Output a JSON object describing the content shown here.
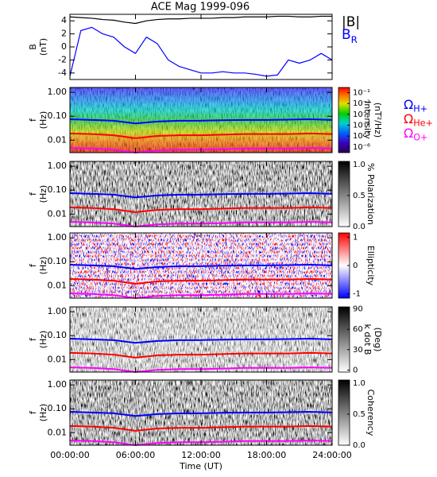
{
  "chart_data": [
    {
      "type": "line",
      "title": "ACE Mag 1999-096",
      "ylabel": [
        "B",
        "(nT)"
      ],
      "xlim": [
        0,
        24
      ],
      "ylim": [
        -5,
        5
      ],
      "yticks": [
        -4,
        -2,
        0,
        2,
        4
      ],
      "x": [
        0,
        1,
        2,
        3,
        4,
        5,
        6,
        7,
        8,
        9,
        10,
        11,
        12,
        13,
        14,
        15,
        16,
        17,
        18,
        19,
        20,
        21,
        22,
        23,
        24
      ],
      "series": [
        {
          "name": "|B|",
          "color": "#000000",
          "values": [
            4.6,
            4.5,
            4.4,
            4.2,
            4.1,
            3.8,
            3.6,
            4,
            4.2,
            4.3,
            4.3,
            4.4,
            4.4,
            4.4,
            4.5,
            4.5,
            4.6,
            4.6,
            4.6,
            4.7,
            4.7,
            4.6,
            4.6,
            4.7,
            4.7
          ]
        },
        {
          "name": "BR",
          "color": "#0000ff",
          "values": [
            -4.5,
            2.5,
            3,
            2,
            1.5,
            0,
            -1,
            1.5,
            0.5,
            -2,
            -3,
            -3.5,
            -4,
            -4,
            -3.8,
            -4,
            -4,
            -4.2,
            -4.5,
            -4.3,
            -2,
            -2.5,
            -2,
            -1,
            -2
          ]
        }
      ]
    },
    {
      "type": "spectrogram",
      "ylabel": [
        "f",
        "(Hz)"
      ],
      "xlim": [
        0,
        24
      ],
      "ylim": [
        0.003,
        1.6
      ],
      "log_y": true,
      "yticks": [
        0.01,
        {
          "value": 0.1,
          "label": "0.10"
        },
        {
          "value": 1,
          "label": "1.00"
        }
      ],
      "colormap": "rainbow",
      "colorbar": {
        "label": [
          "Intensity",
          "(nT²/Hz)"
        ],
        "log": true,
        "lim": [
          3e-07,
          0.3
        ],
        "ticks": [
          {
            "value": 0.1,
            "label": "10⁻¹"
          },
          {
            "value": 0.01,
            "label": "10⁻²"
          },
          {
            "value": 0.001,
            "label": "10⁻³"
          },
          {
            "value": 0.0001,
            "label": "10⁻⁴"
          },
          {
            "value": 1e-05,
            "label": "10⁻⁵"
          },
          {
            "value": 1e-06,
            "label": "10⁻⁶"
          }
        ]
      },
      "x": [
        0,
        2,
        4,
        6,
        8,
        10,
        12,
        14,
        16,
        18,
        20,
        22,
        24
      ],
      "series": [
        {
          "name": "ΩH+",
          "color": "#0000ff",
          "values": [
            0.075,
            0.07,
            0.065,
            0.05,
            0.06,
            0.065,
            0.065,
            0.068,
            0.07,
            0.07,
            0.072,
            0.075,
            0.07
          ]
        },
        {
          "name": "ΩHe+",
          "color": "#ff0000",
          "values": [
            0.019,
            0.018,
            0.016,
            0.012,
            0.015,
            0.016,
            0.016,
            0.017,
            0.018,
            0.018,
            0.018,
            0.019,
            0.018
          ]
        },
        {
          "name": "ΩO+",
          "color": "#ff00ff",
          "values": [
            0.0047,
            0.0045,
            0.004,
            0.003,
            0.0037,
            0.004,
            0.004,
            0.0042,
            0.0045,
            0.0045,
            0.0045,
            0.0047,
            0.0045
          ]
        }
      ]
    },
    {
      "type": "spectrogram",
      "ylabel": [
        "f",
        "(Hz)"
      ],
      "xlim": [
        0,
        24
      ],
      "ylim": [
        0.003,
        1.6
      ],
      "log_y": true,
      "yticks": [
        0.01,
        {
          "value": 0.1,
          "label": "0.10"
        },
        {
          "value": 1,
          "label": "1.00"
        }
      ],
      "colormap": "gray",
      "colorbar": {
        "label": [
          "% Polarization"
        ],
        "lim": [
          0,
          1.05
        ],
        "ticks": [
          {
            "value": 0,
            "label": "0.0"
          },
          {
            "value": 0.5,
            "label": "0.5"
          },
          {
            "value": 1,
            "label": "1.0"
          }
        ]
      },
      "x": [
        0,
        2,
        4,
        6,
        8,
        10,
        12,
        14,
        16,
        18,
        20,
        22,
        24
      ],
      "series": [
        {
          "color": "#0000ff",
          "values": [
            0.075,
            0.07,
            0.065,
            0.05,
            0.06,
            0.065,
            0.065,
            0.068,
            0.07,
            0.07,
            0.072,
            0.075,
            0.07
          ]
        },
        {
          "color": "#ff0000",
          "values": [
            0.019,
            0.018,
            0.016,
            0.012,
            0.015,
            0.016,
            0.016,
            0.017,
            0.018,
            0.018,
            0.018,
            0.019,
            0.018
          ]
        },
        {
          "color": "#ff00ff",
          "values": [
            0.0047,
            0.0045,
            0.004,
            0.003,
            0.0037,
            0.004,
            0.004,
            0.0042,
            0.0045,
            0.0045,
            0.0045,
            0.0047,
            0.0045
          ]
        }
      ]
    },
    {
      "type": "spectrogram",
      "ylabel": [
        "f",
        "(Hz)"
      ],
      "xlim": [
        0,
        24
      ],
      "ylim": [
        0.003,
        1.6
      ],
      "log_y": true,
      "yticks": [
        0.01,
        {
          "value": 0.1,
          "label": "0.10"
        },
        {
          "value": 1,
          "label": "1.00"
        }
      ],
      "colormap": "bwr",
      "colorbar": {
        "label": [
          "Ellipticity"
        ],
        "lim": [
          -1.15,
          1.15
        ],
        "ticks": [
          -1,
          0,
          1
        ]
      },
      "x": [
        0,
        2,
        4,
        6,
        8,
        10,
        12,
        14,
        16,
        18,
        20,
        22,
        24
      ],
      "series": [
        {
          "color": "#0000ff",
          "values": [
            0.075,
            0.07,
            0.065,
            0.05,
            0.06,
            0.065,
            0.065,
            0.068,
            0.07,
            0.07,
            0.072,
            0.075,
            0.07
          ]
        },
        {
          "color": "#ff0000",
          "values": [
            0.019,
            0.018,
            0.016,
            0.012,
            0.015,
            0.016,
            0.016,
            0.017,
            0.018,
            0.018,
            0.018,
            0.019,
            0.018
          ]
        },
        {
          "color": "#ff00ff",
          "values": [
            0.0047,
            0.0045,
            0.004,
            0.003,
            0.0037,
            0.004,
            0.004,
            0.0042,
            0.0045,
            0.0045,
            0.0045,
            0.0047,
            0.0045
          ]
        }
      ]
    },
    {
      "type": "spectrogram",
      "ylabel": [
        "f",
        "(Hz)"
      ],
      "xlim": [
        0,
        24
      ],
      "ylim": [
        0.003,
        1.6
      ],
      "log_y": true,
      "yticks": [
        0.01,
        {
          "value": 0.1,
          "label": "0.10"
        },
        {
          "value": 1,
          "label": "1.00"
        }
      ],
      "colormap": "gray-light",
      "colorbar": {
        "label": [
          "k dot B",
          "(Deg)"
        ],
        "lim": [
          -3,
          93
        ],
        "ticks": [
          0,
          30,
          60,
          90
        ]
      },
      "x": [
        0,
        2,
        4,
        6,
        8,
        10,
        12,
        14,
        16,
        18,
        20,
        22,
        24
      ],
      "series": [
        {
          "color": "#0000ff",
          "values": [
            0.075,
            0.07,
            0.065,
            0.05,
            0.06,
            0.065,
            0.065,
            0.068,
            0.07,
            0.07,
            0.072,
            0.075,
            0.07
          ]
        },
        {
          "color": "#ff0000",
          "values": [
            0.019,
            0.018,
            0.016,
            0.012,
            0.015,
            0.016,
            0.016,
            0.017,
            0.018,
            0.018,
            0.018,
            0.019,
            0.018
          ]
        },
        {
          "color": "#ff00ff",
          "values": [
            0.0047,
            0.0045,
            0.004,
            0.003,
            0.0037,
            0.004,
            0.004,
            0.0042,
            0.0045,
            0.0045,
            0.0045,
            0.0047,
            0.0045
          ]
        }
      ]
    },
    {
      "type": "spectrogram",
      "ylabel": [
        "f",
        "(Hz)"
      ],
      "xlim": [
        0,
        24
      ],
      "ylim": [
        0.003,
        1.6
      ],
      "log_y": true,
      "yticks": [
        0.01,
        {
          "value": 0.1,
          "label": "0.10"
        },
        {
          "value": 1,
          "label": "1.00"
        }
      ],
      "colormap": "gray",
      "colorbar": {
        "label": [
          "Coherency"
        ],
        "lim": [
          0,
          1.05
        ],
        "ticks": [
          {
            "value": 0,
            "label": "0.0"
          },
          {
            "value": 0.5,
            "label": "0.5"
          },
          {
            "value": 1,
            "label": "1.0"
          }
        ]
      },
      "x": [
        0,
        2,
        4,
        6,
        8,
        10,
        12,
        14,
        16,
        18,
        20,
        22,
        24
      ],
      "series": [
        {
          "color": "#0000ff",
          "values": [
            0.075,
            0.07,
            0.065,
            0.05,
            0.06,
            0.065,
            0.065,
            0.068,
            0.07,
            0.07,
            0.072,
            0.075,
            0.07
          ]
        },
        {
          "color": "#ff0000",
          "values": [
            0.019,
            0.018,
            0.016,
            0.012,
            0.015,
            0.016,
            0.016,
            0.017,
            0.018,
            0.018,
            0.018,
            0.019,
            0.018
          ]
        },
        {
          "color": "#ff00ff",
          "values": [
            0.0047,
            0.0045,
            0.004,
            0.003,
            0.0037,
            0.004,
            0.004,
            0.0042,
            0.0045,
            0.0045,
            0.0045,
            0.0047,
            0.0045
          ]
        }
      ],
      "xlabel": "Time (UT)",
      "xticks": [
        {
          "value": 0,
          "label": "00:00:00"
        },
        {
          "value": 6,
          "label": "06:00:00"
        },
        {
          "value": 12,
          "label": "12:00:00"
        },
        {
          "value": 18,
          "label": "18:00:00"
        },
        {
          "value": 24,
          "label": "24:00:00"
        }
      ]
    }
  ]
}
